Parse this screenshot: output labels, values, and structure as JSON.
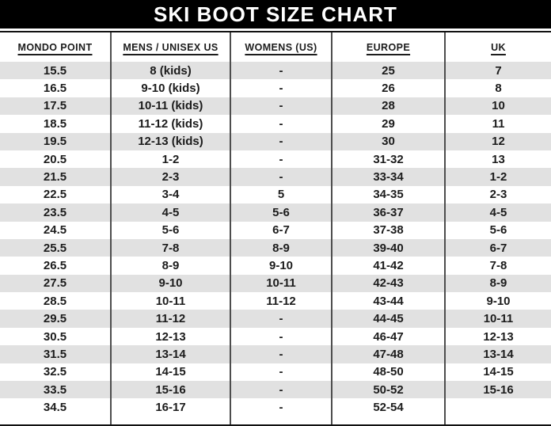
{
  "title": "SKI BOOT SIZE CHART",
  "chart_data": {
    "type": "table",
    "title": "SKI BOOT SIZE CHART",
    "columns": [
      "MONDO POINT",
      "MENS / UNISEX US",
      "WOMENS (US)",
      "EUROPE",
      "UK"
    ],
    "rows": [
      [
        "15.5",
        "8 (kids)",
        "-",
        "25",
        "7"
      ],
      [
        "16.5",
        "9-10 (kids)",
        "-",
        "26",
        "8"
      ],
      [
        "17.5",
        "10-11 (kids)",
        "-",
        "28",
        "10"
      ],
      [
        "18.5",
        "11-12 (kids)",
        "-",
        "29",
        "11"
      ],
      [
        "19.5",
        "12-13 (kids)",
        "-",
        "30",
        "12"
      ],
      [
        "20.5",
        "1-2",
        "-",
        "31-32",
        "13"
      ],
      [
        "21.5",
        "2-3",
        "-",
        "33-34",
        "1-2"
      ],
      [
        "22.5",
        "3-4",
        "5",
        "34-35",
        "2-3"
      ],
      [
        "23.5",
        "4-5",
        "5-6",
        "36-37",
        "4-5"
      ],
      [
        "24.5",
        "5-6",
        "6-7",
        "37-38",
        "5-6"
      ],
      [
        "25.5",
        "7-8",
        "8-9",
        "39-40",
        "6-7"
      ],
      [
        "26.5",
        "8-9",
        "9-10",
        "41-42",
        "7-8"
      ],
      [
        "27.5",
        "9-10",
        "10-11",
        "42-43",
        "8-9"
      ],
      [
        "28.5",
        "10-11",
        "11-12",
        "43-44",
        "9-10"
      ],
      [
        "29.5",
        "11-12",
        "-",
        "44-45",
        "10-11"
      ],
      [
        "30.5",
        "12-13",
        "-",
        "46-47",
        "12-13"
      ],
      [
        "31.5",
        "13-14",
        "-",
        "47-48",
        "13-14"
      ],
      [
        "32.5",
        "14-15",
        "-",
        "48-50",
        "14-15"
      ],
      [
        "33.5",
        "15-16",
        "-",
        "50-52",
        "15-16"
      ],
      [
        "34.5",
        "16-17",
        "-",
        "52-54",
        ""
      ]
    ],
    "layout": {
      "stripe_rows": "odd rows shaded",
      "grid": "vertical column dividers only",
      "legend": "none"
    }
  },
  "colors": {
    "title_bar_bg": "#000000",
    "title_text": "#ffffff",
    "stripe": "#e1e1e1",
    "row_text": "#1c1c1c",
    "divider": "#4d4d4d",
    "border": "#111111"
  }
}
